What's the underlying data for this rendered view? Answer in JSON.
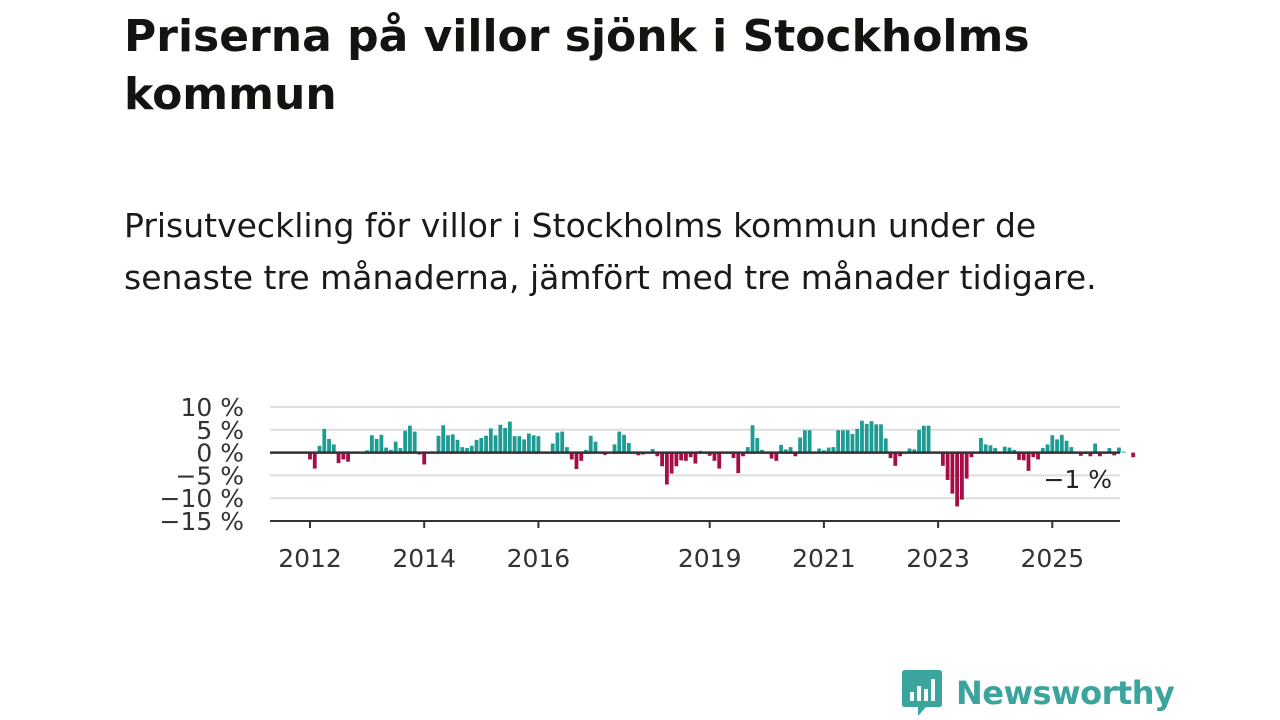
{
  "title": "Priserna på villor sjönk i Stockholms kommun",
  "subtitle": "Prisutveckling för villor i Stockholms kommun under de senaste tre månaderna, jämfört med tre månader tidigare.",
  "brand": {
    "name": "Newsworthy",
    "color": "#3aa59c",
    "icon": "newsworthy-logo-icon"
  },
  "chart_data": {
    "type": "bar",
    "title": "",
    "xlabel": "",
    "ylabel": "",
    "ylim": [
      -15,
      10
    ],
    "y_ticks": [
      10,
      5,
      0,
      -5,
      -10,
      -15
    ],
    "y_tick_labels": [
      "10 %",
      "5 %",
      "0 %",
      "−5 %",
      "−10 %",
      "−15 %"
    ],
    "x_ticks": [
      "2012",
      "2014",
      "2016",
      "2019",
      "2021",
      "2023",
      "2025"
    ],
    "start": "2011-08",
    "end": "2025-09",
    "grid": true,
    "colors": {
      "positive": "#1e9c94",
      "negative": "#a50d45",
      "zero_line": "#333333",
      "grid": "#dddddd"
    },
    "annotation": "−1 %",
    "series": [
      {
        "values": [
          0,
          0,
          0,
          0,
          0,
          -1.5,
          -3.5,
          1.5,
          5.2,
          3.0,
          1.8,
          -2.3,
          -1.5,
          -2.0,
          0,
          0,
          0,
          0.5,
          3.8,
          3.0,
          3.9,
          1.1,
          0.6,
          2.4,
          1.0,
          4.8,
          5.9,
          4.6,
          -0.4,
          -2.6,
          0,
          0,
          3.7,
          6.0,
          3.8,
          4.0,
          2.8,
          1.2,
          1.0,
          1.5,
          2.8,
          3.2,
          3.7,
          5.3,
          3.8,
          6.1,
          5.4,
          6.8,
          3.6,
          3.6,
          2.9,
          4.2,
          3.8,
          3.6,
          0,
          0,
          2.0,
          4.4,
          4.6,
          1.2,
          -1.5,
          -3.6,
          -1.8,
          0.6,
          3.7,
          2.4,
          0,
          -0.5,
          0,
          1.8,
          4.6,
          3.9,
          2.1,
          0,
          -0.6,
          -0.4,
          0,
          0.8,
          -0.8,
          -3.0,
          -7.0,
          -4.6,
          -3.0,
          -1.7,
          -1.8,
          -1.0,
          -2.4,
          0.4,
          0.2,
          -0.7,
          -1.8,
          -3.5,
          0,
          0,
          -1.2,
          -4.5,
          -0.8,
          1.2,
          6.0,
          3.2,
          0.6,
          0,
          -1.3,
          -1.8,
          1.7,
          0.7,
          1.2,
          -0.8,
          3.3,
          4.9,
          4.9,
          0,
          0.9,
          0.5,
          1.1,
          1.2,
          4.9,
          4.9,
          4.9,
          4.1,
          5.2,
          7.0,
          6.3,
          6.9,
          6.2,
          6.2,
          3.1,
          -1.2,
          -2.9,
          -0.8,
          0.2,
          0.9,
          0.7,
          5.0,
          5.9,
          5.9,
          0,
          0,
          -2.9,
          -6.0,
          -9.0,
          -11.8,
          -10.3,
          -5.7,
          -1.0,
          0,
          3.2,
          1.8,
          1.6,
          1.0,
          0,
          1.3,
          1.1,
          0.6,
          -1.6,
          -1.7,
          -4.0,
          -1.0,
          -1.5,
          1.0,
          1.8,
          3.8,
          2.9,
          3.9,
          2.6,
          1.2,
          0,
          -0.7,
          -0.3,
          -0.8,
          2.0,
          -0.8,
          0,
          1.0,
          -0.6,
          1.1,
          0.2,
          0,
          -1.0
        ]
      }
    ]
  }
}
